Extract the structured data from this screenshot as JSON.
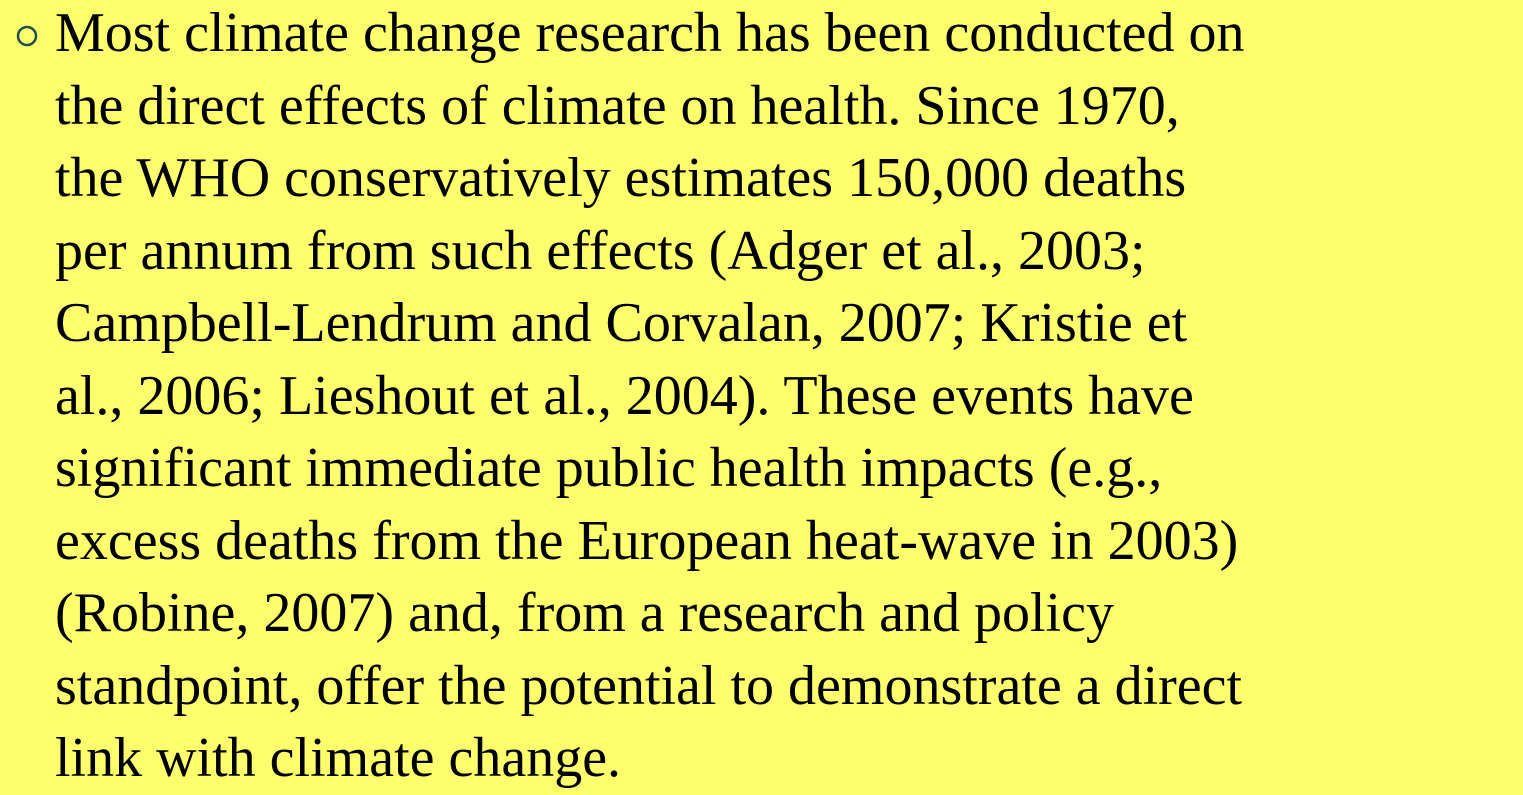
{
  "bullet": {
    "lines": [
      "Most climate change research has been conducted on",
      "the direct effects of climate on health. Since 1970,",
      "the WHO conservatively estimates 150,000 deaths",
      "per annum from such effects (Adger et al., 2003;",
      "Campbell-Lendrum and Corvalan, 2007; Kristie et",
      "al., 2006; Lieshout et al., 2004). These events have",
      "significant immediate public health impacts (e.g.,",
      "excess deaths from the European heat-wave in 2003)",
      "(Robine, 2007) and, from a research and policy",
      "standpoint, offer the potential to demonstrate a direct",
      "link with climate change."
    ]
  }
}
